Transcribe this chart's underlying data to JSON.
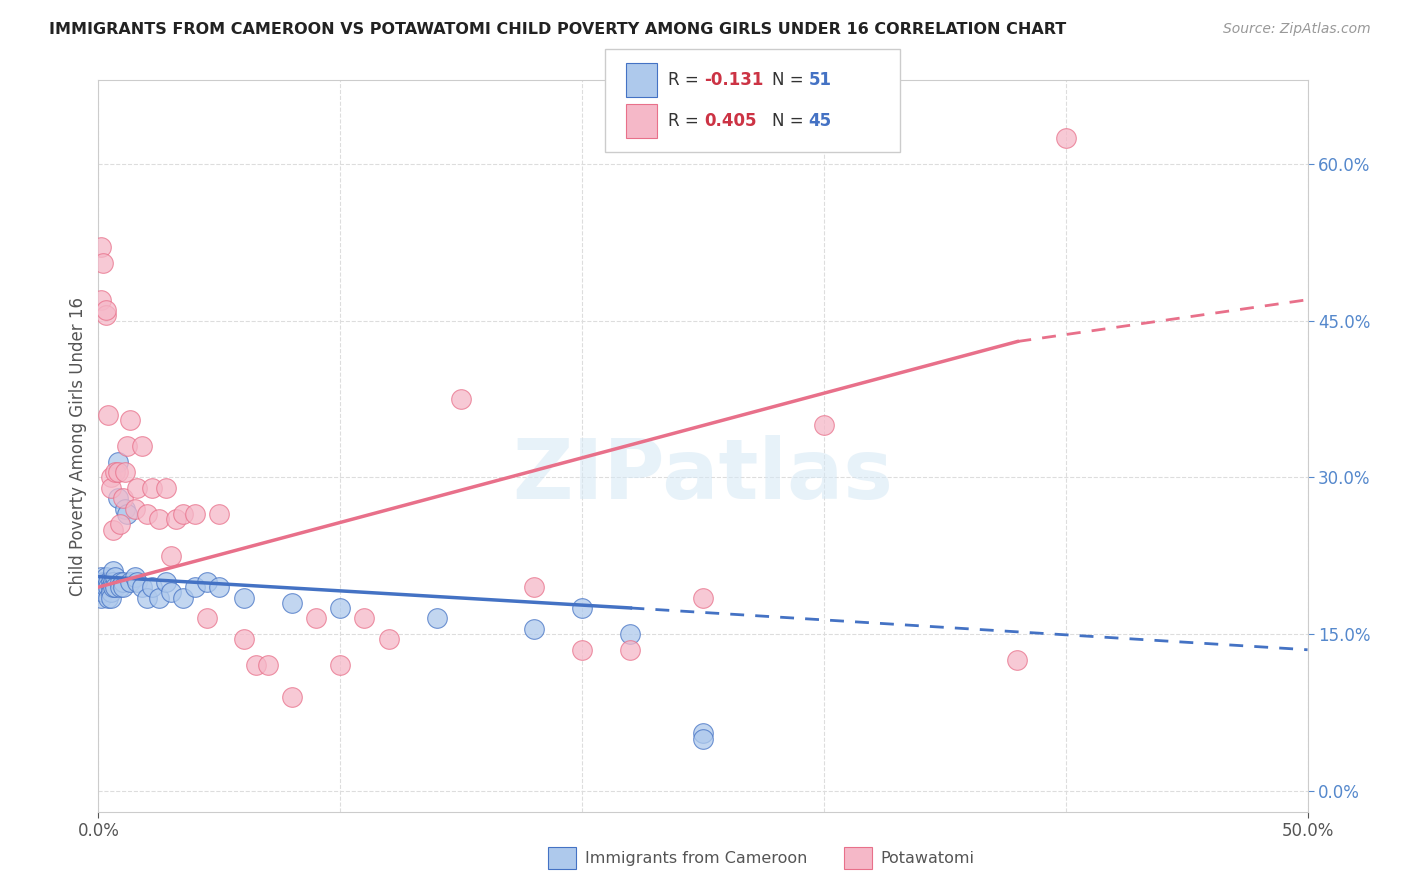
{
  "title": "IMMIGRANTS FROM CAMEROON VS POTAWATOMI CHILD POVERTY AMONG GIRLS UNDER 16 CORRELATION CHART",
  "source": "Source: ZipAtlas.com",
  "ylabel": "Child Poverty Among Girls Under 16",
  "xlim": [
    0.0,
    0.5
  ],
  "ylim": [
    -0.02,
    0.68
  ],
  "xtick_labels": [
    "0.0%",
    "50.0%"
  ],
  "ytick_vals": [
    0.0,
    0.15,
    0.3,
    0.45,
    0.6
  ],
  "ytick_labels_right": [
    "0.0%",
    "15.0%",
    "30.0%",
    "45.0%",
    "60.0%"
  ],
  "color_blue": "#AEC9EC",
  "color_pink": "#F5B8C8",
  "color_blue_line": "#4472C4",
  "color_pink_line": "#E8708A",
  "watermark": "ZIPatlas",
  "blue_points_x": [
    0.001,
    0.001,
    0.001,
    0.002,
    0.002,
    0.002,
    0.003,
    0.003,
    0.003,
    0.004,
    0.004,
    0.004,
    0.005,
    0.005,
    0.005,
    0.005,
    0.006,
    0.006,
    0.006,
    0.007,
    0.007,
    0.008,
    0.008,
    0.009,
    0.009,
    0.01,
    0.01,
    0.011,
    0.012,
    0.013,
    0.015,
    0.016,
    0.018,
    0.02,
    0.022,
    0.025,
    0.028,
    0.03,
    0.035,
    0.04,
    0.045,
    0.05,
    0.06,
    0.08,
    0.1,
    0.14,
    0.18,
    0.2,
    0.22,
    0.25,
    0.25
  ],
  "blue_points_y": [
    0.195,
    0.205,
    0.185,
    0.2,
    0.195,
    0.19,
    0.2,
    0.205,
    0.195,
    0.2,
    0.195,
    0.185,
    0.2,
    0.195,
    0.19,
    0.185,
    0.21,
    0.2,
    0.195,
    0.205,
    0.195,
    0.28,
    0.315,
    0.2,
    0.195,
    0.2,
    0.195,
    0.27,
    0.265,
    0.2,
    0.205,
    0.2,
    0.195,
    0.185,
    0.195,
    0.185,
    0.2,
    0.19,
    0.185,
    0.195,
    0.2,
    0.195,
    0.185,
    0.18,
    0.175,
    0.165,
    0.155,
    0.175,
    0.15,
    0.055,
    0.05
  ],
  "pink_points_x": [
    0.001,
    0.001,
    0.002,
    0.003,
    0.003,
    0.004,
    0.005,
    0.005,
    0.006,
    0.007,
    0.008,
    0.009,
    0.01,
    0.011,
    0.012,
    0.013,
    0.015,
    0.016,
    0.018,
    0.02,
    0.022,
    0.025,
    0.028,
    0.03,
    0.032,
    0.035,
    0.04,
    0.045,
    0.05,
    0.06,
    0.065,
    0.07,
    0.08,
    0.09,
    0.1,
    0.11,
    0.12,
    0.15,
    0.18,
    0.2,
    0.22,
    0.25,
    0.3,
    0.38,
    0.4
  ],
  "pink_points_y": [
    0.52,
    0.47,
    0.505,
    0.455,
    0.46,
    0.36,
    0.3,
    0.29,
    0.25,
    0.305,
    0.305,
    0.255,
    0.28,
    0.305,
    0.33,
    0.355,
    0.27,
    0.29,
    0.33,
    0.265,
    0.29,
    0.26,
    0.29,
    0.225,
    0.26,
    0.265,
    0.265,
    0.165,
    0.265,
    0.145,
    0.12,
    0.12,
    0.09,
    0.165,
    0.12,
    0.165,
    0.145,
    0.375,
    0.195,
    0.135,
    0.135,
    0.185,
    0.35,
    0.125,
    0.625
  ],
  "blue_line_start_x": 0.0,
  "blue_line_start_y": 0.205,
  "blue_line_solid_end_x": 0.22,
  "blue_line_solid_end_y": 0.175,
  "blue_line_dash_end_x": 0.5,
  "blue_line_dash_end_y": 0.135,
  "pink_line_start_x": 0.0,
  "pink_line_start_y": 0.195,
  "pink_line_solid_end_x": 0.38,
  "pink_line_solid_end_y": 0.43,
  "pink_line_dash_end_x": 0.5,
  "pink_line_dash_end_y": 0.47
}
